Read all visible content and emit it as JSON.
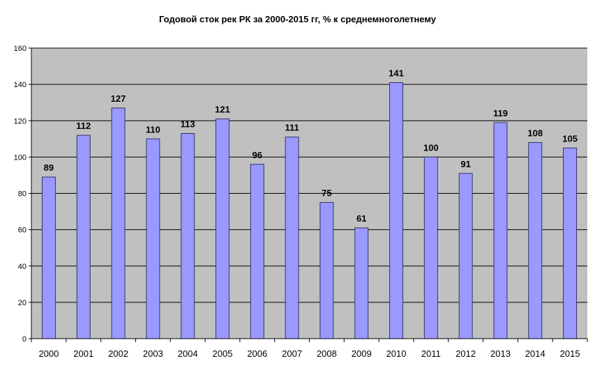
{
  "chart_data": {
    "type": "bar",
    "title": "Годовой сток рек РК за 2000-2015 гг, %  к среднемноголетнему",
    "xlabel": "",
    "ylabel": "",
    "categories": [
      "2000",
      "2001",
      "2002",
      "2003",
      "2004",
      "2005",
      "2006",
      "2007",
      "2008",
      "2009",
      "2010",
      "2011",
      "2012",
      "2013",
      "2014",
      "2015"
    ],
    "values": [
      89,
      112,
      127,
      110,
      113,
      121,
      96,
      111,
      75,
      61,
      141,
      100,
      91,
      119,
      108,
      105
    ],
    "ylim": [
      0,
      160
    ],
    "yticks": [
      0,
      20,
      40,
      60,
      80,
      100,
      120,
      140,
      160
    ],
    "grid": true,
    "legend": "none",
    "colors": {
      "bar_fill": "#9999ff",
      "bar_stroke": "#333366",
      "plot_background": "#c0c0c0",
      "gridline": "#000000"
    }
  }
}
